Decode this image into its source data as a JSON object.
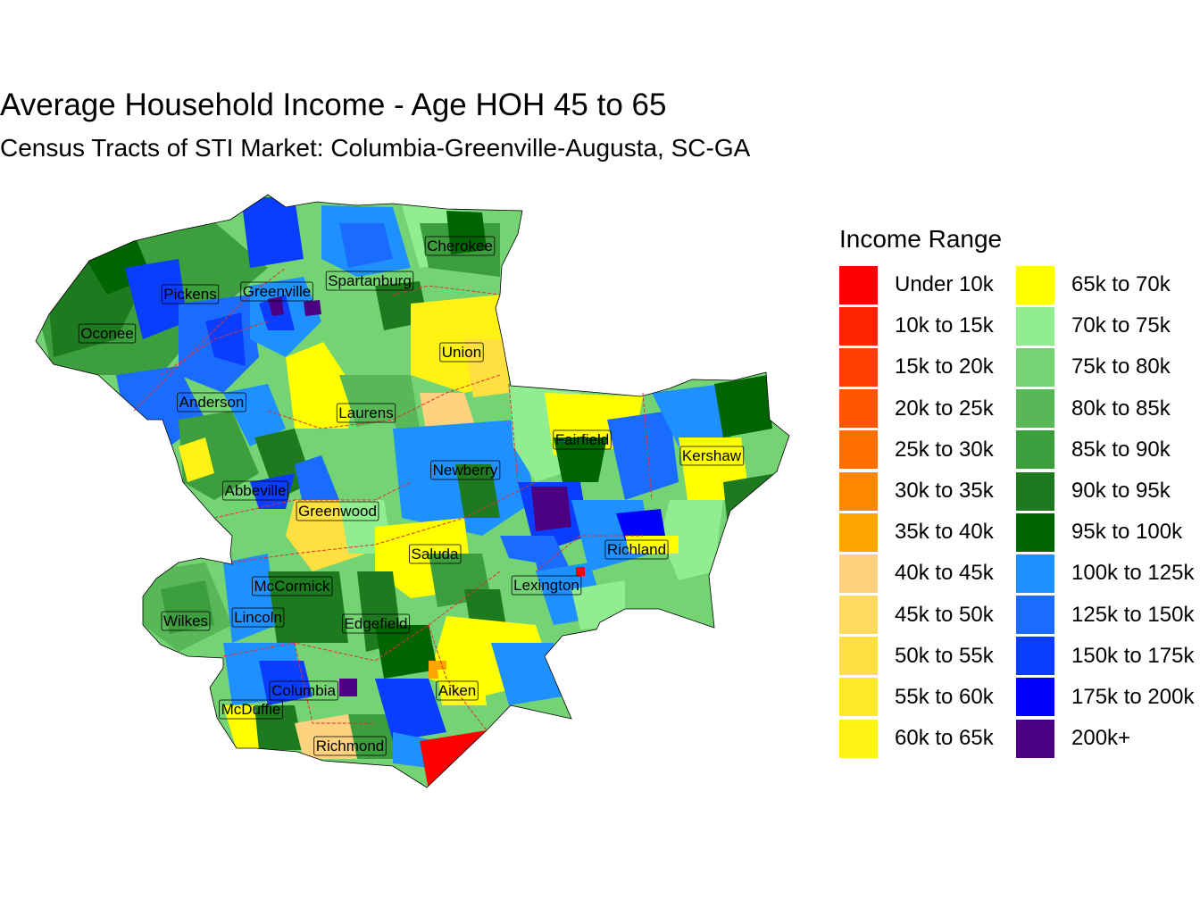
{
  "title": "Average Household Income - Age HOH 45 to 65",
  "subtitle": "Census Tracts of STI Market: Columbia-Greenville-Augusta, SC-GA",
  "legend": {
    "title": "Income Range",
    "items": [
      {
        "label": "Under 10k",
        "color": "#FF0000"
      },
      {
        "label": "10k to 15k",
        "color": "#FF2400"
      },
      {
        "label": "15k to 20k",
        "color": "#FF3D00"
      },
      {
        "label": "20k to 25k",
        "color": "#FF5500"
      },
      {
        "label": "25k to 30k",
        "color": "#FF6E00"
      },
      {
        "label": "30k to 35k",
        "color": "#FF8800"
      },
      {
        "label": "35k to 40k",
        "color": "#FFA500"
      },
      {
        "label": "40k to 45k",
        "color": "#FFD27F"
      },
      {
        "label": "45k to 50k",
        "color": "#FFDA5E"
      },
      {
        "label": "50k to 55k",
        "color": "#FFE040"
      },
      {
        "label": "55k to 60k",
        "color": "#FFE82A"
      },
      {
        "label": "60k to 65k",
        "color": "#FFF215"
      },
      {
        "label": "65k to 70k",
        "color": "#FFFF00"
      },
      {
        "label": "70k to 75k",
        "color": "#90EE90"
      },
      {
        "label": "75k to 80k",
        "color": "#74D474"
      },
      {
        "label": "80k to 85k",
        "color": "#58B858"
      },
      {
        "label": "85k to 90k",
        "color": "#3C9E3C"
      },
      {
        "label": "90k to 95k",
        "color": "#1E7A1E"
      },
      {
        "label": "95k to 100k",
        "color": "#006400"
      },
      {
        "label": "100k to 125k",
        "color": "#1E90FF"
      },
      {
        "label": "125k to 150k",
        "color": "#1A6CFF"
      },
      {
        "label": "150k to 175k",
        "color": "#0A3DFF"
      },
      {
        "label": "175k to 200k",
        "color": "#0000FF"
      },
      {
        "label": "200k+",
        "color": "#4B0082"
      }
    ]
  },
  "counties": [
    {
      "name": "Cherokee"
    },
    {
      "name": "Pickens"
    },
    {
      "name": "Greenville"
    },
    {
      "name": "Spartanburg"
    },
    {
      "name": "Oconee"
    },
    {
      "name": "Union"
    },
    {
      "name": "Anderson"
    },
    {
      "name": "Laurens"
    },
    {
      "name": "Fairfield"
    },
    {
      "name": "Kershaw"
    },
    {
      "name": "Newberry"
    },
    {
      "name": "Abbeville"
    },
    {
      "name": "Greenwood"
    },
    {
      "name": "Richland"
    },
    {
      "name": "Saluda"
    },
    {
      "name": "Lexington"
    },
    {
      "name": "McCormick"
    },
    {
      "name": "Wilkes"
    },
    {
      "name": "Lincoln"
    },
    {
      "name": "Edgefield"
    },
    {
      "name": "Columbia"
    },
    {
      "name": "Aiken"
    },
    {
      "name": "McDuffie"
    },
    {
      "name": "Richmond"
    }
  ]
}
